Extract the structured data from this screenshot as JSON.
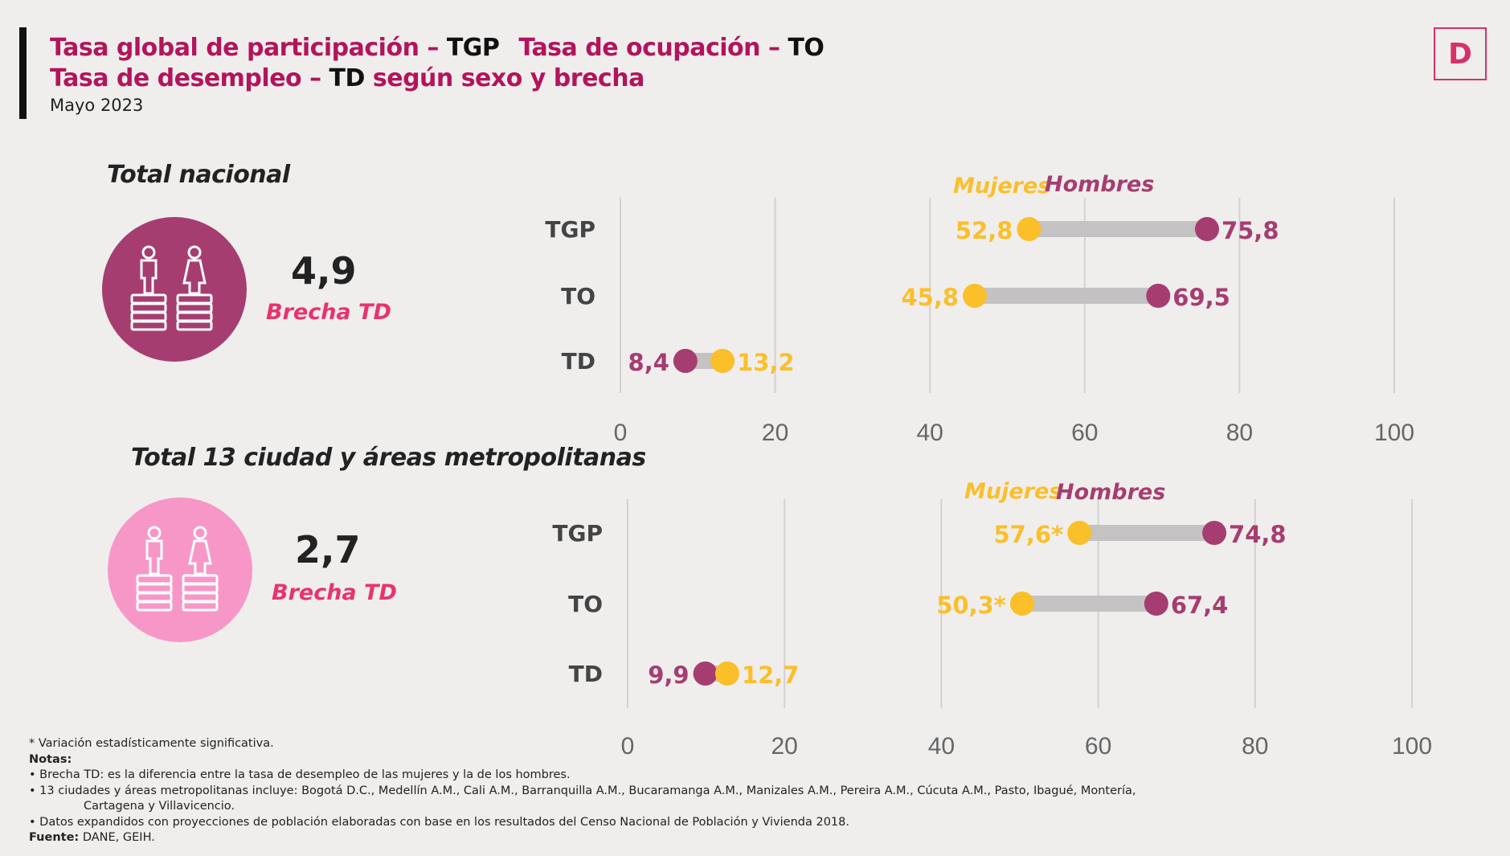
{
  "header": {
    "title_line1_a": "Tasa global de participación – ",
    "title_line1_b": "TGP",
    "title_line1_c": "Tasa de ocupación – ",
    "title_line1_d": "TO",
    "title_line2_a": "Tasa de desempleo – ",
    "title_line2_b": "TD",
    "title_line2_c": " según sexo y brecha",
    "subtitle": "Mayo 2023",
    "logo": "D"
  },
  "colors": {
    "hombres": "#a63d70",
    "mujeres": "#fbbf2a",
    "connector": "#c4c2c2",
    "title": "#b3145a",
    "brecha": "#e8336f",
    "circle_nacional": "#a63d70",
    "circle_ciudades": "#f797c8"
  },
  "sections": [
    {
      "title": "Total nacional",
      "brecha_value": "4,9",
      "brecha_label": "Brecha TD",
      "icon": "men-women-coins-icon"
    },
    {
      "title": "Total 13 ciudad y áreas metropolitanas",
      "brecha_value": "2,7",
      "brecha_label": "Brecha TD",
      "icon": "men-women-coins-icon"
    }
  ],
  "chart_data": [
    {
      "type": "dumbbell",
      "xlim": [
        0,
        100
      ],
      "xticks": [
        "0",
        "20",
        "40",
        "60",
        "80",
        "100"
      ],
      "grid": true,
      "legend": [
        "Mujeres",
        "Hombres"
      ],
      "legend_position": "top-right",
      "categories": [
        "TGP",
        "TO",
        "TD"
      ],
      "series": [
        {
          "name": "Mujeres",
          "values": [
            52.8,
            45.8,
            13.2
          ],
          "labels": [
            "52,8",
            "45,8",
            "13,2"
          ]
        },
        {
          "name": "Hombres",
          "values": [
            75.8,
            69.5,
            8.4
          ],
          "labels": [
            "75,8",
            "69,5",
            "8,4"
          ]
        }
      ]
    },
    {
      "type": "dumbbell",
      "xlim": [
        0,
        100
      ],
      "xticks": [
        "0",
        "20",
        "40",
        "60",
        "80",
        "100"
      ],
      "grid": true,
      "legend": [
        "Mujeres",
        "Hombres"
      ],
      "legend_position": "top-right",
      "categories": [
        "TGP",
        "TO",
        "TD"
      ],
      "series": [
        {
          "name": "Mujeres",
          "values": [
            57.6,
            50.3,
            12.7
          ],
          "labels": [
            "57,6*",
            "50,3*",
            "12,7"
          ]
        },
        {
          "name": "Hombres",
          "values": [
            74.8,
            67.4,
            9.9
          ],
          "labels": [
            "74,8",
            "67,4",
            "9,9"
          ]
        }
      ]
    }
  ],
  "notes": {
    "significance": "* Variación estadísticamente significativa.",
    "notes_label": "Notas:",
    "note1": "• Brecha TD: es la diferencia entre la tasa de desempleo de las mujeres y la de los hombres.",
    "note2": "• 13 ciudades y áreas metropolitanas incluye: Bogotá D.C., Medellín A.M., Cali A.M., Barranquilla A.M., Bucaramanga A.M., Manizales A.M., Pereira A.M., Cúcuta A.M., Pasto, Ibagué, Montería,",
    "note2_cont": "Cartagena y Villavicencio.",
    "note3": "• Datos expandidos con proyecciones de población elaboradas con base en los resultados del Censo Nacional de Población y Vivienda 2018.",
    "source_label": "Fuente:",
    "source": " DANE, GEIH."
  }
}
